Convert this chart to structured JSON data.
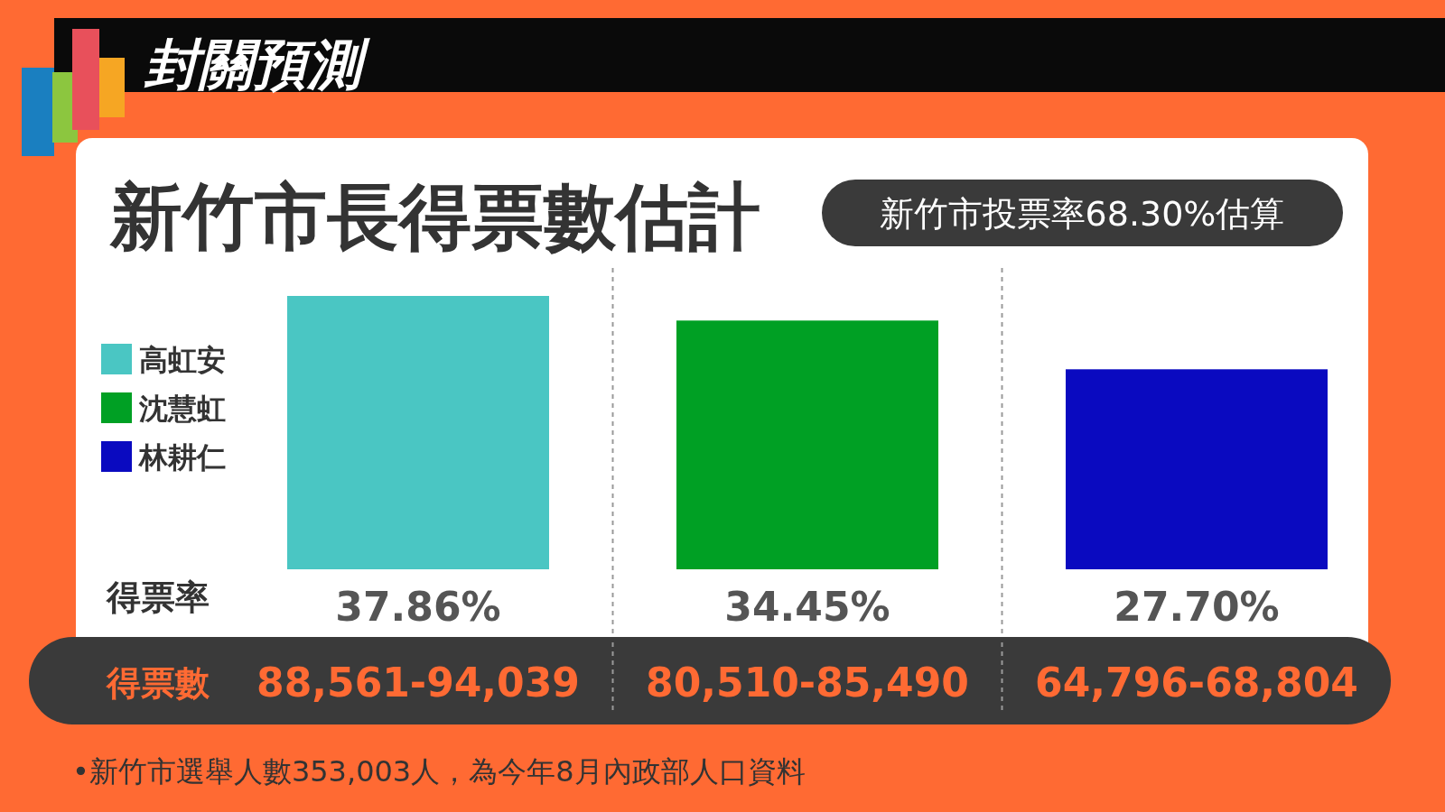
{
  "chart_data": {
    "type": "bar",
    "title": "封關預測",
    "subtitle": "新竹市長得票數估計",
    "categories": [
      null,
      null,
      null
    ],
    "series": [
      {
        "name": "高虹安",
        "color": "#4ac6c3",
        "values": [
          37.86,
          null,
          null
        ],
        "value_labels": [
          "37.86%",
          null,
          null
        ]
      },
      {
        "name": "沈慧虹",
        "color": "#00a024",
        "values": [
          null,
          34.45,
          null
        ],
        "value_labels": [
          null,
          "34.45%",
          null
        ]
      },
      {
        "name": "林耕仁",
        "color": "#0a0ac0",
        "values": [
          null,
          null,
          27.7
        ],
        "value_labels": [
          null,
          null,
          "27.70%"
        ]
      }
    ],
    "stacked": true,
    "legend": "left",
    "annotations": [
      "新竹市投票率68.30%估算",
      "得票率",
      "得票數",
      "88,561-94,039",
      "80,510-85,490",
      "64,796-68,804",
      "•新竹市選舉人數353,003人，為今年8月內政部人口資料"
    ]
  }
}
